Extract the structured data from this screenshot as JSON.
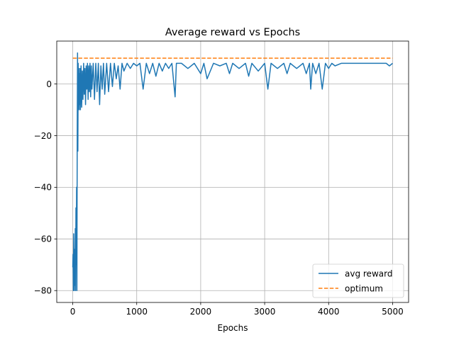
{
  "chart_data": {
    "type": "line",
    "title": "Average reward vs Epochs",
    "xlabel": "Epochs",
    "ylabel": "",
    "xlim": [
      -250,
      5250
    ],
    "ylim": [
      -84.6,
      16.6
    ],
    "xticks": [
      0,
      1000,
      2000,
      3000,
      4000,
      5000
    ],
    "xtick_labels": [
      "0",
      "1000",
      "2000",
      "3000",
      "4000",
      "5000"
    ],
    "yticks": [
      0,
      -20,
      -40,
      -60,
      -80
    ],
    "ytick_labels": [
      "0",
      "−20",
      "−40",
      "−60",
      "−80"
    ],
    "grid": true,
    "legend": {
      "placement": "lower-right"
    },
    "series": [
      {
        "name": "avg reward",
        "color": "#1f77b4",
        "style": "solid",
        "x": [
          0,
          5,
          10,
          15,
          20,
          25,
          30,
          35,
          40,
          45,
          50,
          55,
          60,
          65,
          70,
          75,
          80,
          85,
          90,
          95,
          100,
          105,
          110,
          115,
          120,
          130,
          140,
          150,
          160,
          170,
          180,
          190,
          200,
          210,
          220,
          230,
          240,
          250,
          260,
          270,
          280,
          290,
          300,
          320,
          340,
          360,
          380,
          400,
          420,
          440,
          460,
          480,
          500,
          530,
          560,
          590,
          620,
          650,
          680,
          710,
          740,
          770,
          800,
          850,
          900,
          950,
          1000,
          1050,
          1100,
          1150,
          1200,
          1250,
          1300,
          1350,
          1400,
          1450,
          1500,
          1550,
          1600,
          1620,
          1650,
          1700,
          1800,
          1900,
          2000,
          2050,
          2100,
          2200,
          2300,
          2400,
          2450,
          2500,
          2600,
          2700,
          2750,
          2800,
          2900,
          3000,
          3050,
          3100,
          3200,
          3300,
          3350,
          3400,
          3500,
          3600,
          3650,
          3700,
          3720,
          3750,
          3800,
          3850,
          3900,
          3950,
          4000,
          4050,
          4100,
          4200,
          4300,
          4400,
          4500,
          4600,
          4700,
          4800,
          4900,
          4950,
          5000
        ],
        "y": [
          -71,
          -66,
          -80,
          -58,
          -72,
          -80,
          -64,
          -78,
          -56,
          -80,
          -48,
          -70,
          -40,
          -80,
          -20,
          12,
          -26,
          8,
          -6,
          6,
          -10,
          4,
          -8,
          6,
          -10,
          7,
          -9,
          5,
          -6,
          8,
          -4,
          6,
          -8,
          7,
          -2,
          8,
          -6,
          7,
          -3,
          8,
          -5,
          7,
          -2,
          8,
          -6,
          8,
          -3,
          8,
          -8,
          7,
          -2,
          8,
          -4,
          8,
          -3,
          8,
          -1,
          8,
          2,
          7,
          -2,
          8,
          5,
          8,
          6,
          8,
          7,
          8,
          -2,
          8,
          4,
          8,
          3,
          8,
          5,
          8,
          6,
          8,
          -5,
          8,
          8,
          8,
          6,
          8,
          4,
          8,
          2,
          8,
          7,
          8,
          4,
          8,
          6,
          8,
          3,
          8,
          5,
          8,
          -2,
          8,
          6,
          8,
          4,
          8,
          6,
          8,
          4,
          8,
          -2,
          8,
          4,
          8,
          -2,
          8,
          6,
          8,
          7,
          8,
          8,
          8,
          8,
          8,
          8,
          8,
          8,
          7,
          8
        ]
      },
      {
        "name": "optimum",
        "color": "#ff7f0e",
        "style": "dashed",
        "x": [
          0,
          5000
        ],
        "y": [
          10,
          10
        ]
      }
    ]
  }
}
